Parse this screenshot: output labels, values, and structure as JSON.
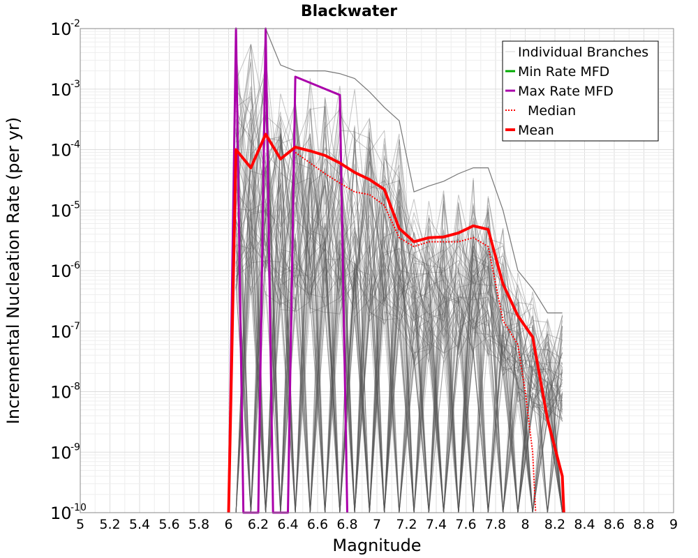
{
  "chart_data": {
    "type": "line",
    "title": "Blackwater",
    "xlabel": "Magnitude",
    "ylabel": "Incremental Nucleation Rate (per yr)",
    "xlim": [
      5,
      9
    ],
    "ylim": [
      1e-10,
      0.01
    ],
    "yscale": "log",
    "grid": true,
    "legend_position": "top-right",
    "x_ticks": [
      "5",
      "5.2",
      "5.4",
      "5.6",
      "5.8",
      "6",
      "6.2",
      "6.4",
      "6.6",
      "6.8",
      "7",
      "7.2",
      "7.4",
      "7.6",
      "7.8",
      "8",
      "8.2",
      "8.4",
      "8.6",
      "8.8",
      "9"
    ],
    "y_ticks": [
      {
        "base": "10",
        "exp": "-10"
      },
      {
        "base": "10",
        "exp": "-9"
      },
      {
        "base": "10",
        "exp": "-8"
      },
      {
        "base": "10",
        "exp": "-7"
      },
      {
        "base": "10",
        "exp": "-6"
      },
      {
        "base": "10",
        "exp": "-5"
      },
      {
        "base": "10",
        "exp": "-4"
      },
      {
        "base": "10",
        "exp": "-3"
      },
      {
        "base": "10",
        "exp": "-2"
      }
    ],
    "series": [
      {
        "name": "Individual Branches",
        "color": "#555555",
        "style": "thin-band",
        "x": [
          6.05,
          6.15,
          6.25,
          6.35,
          6.45,
          6.55,
          6.65,
          6.75,
          6.85,
          6.95,
          7.05,
          7.15,
          7.25,
          7.35,
          7.45,
          7.55,
          7.65,
          7.75,
          7.85,
          7.95,
          8.05,
          8.15,
          8.25
        ],
        "upper": [
          0.05,
          0.05,
          0.05,
          0.0025,
          0.002,
          0.002,
          0.002,
          0.0018,
          0.0015,
          0.0009,
          0.0005,
          0.0003,
          2e-05,
          2.5e-05,
          3e-05,
          4e-05,
          5e-05,
          5e-05,
          1e-05,
          1e-06,
          5e-07,
          2e-07,
          2e-07
        ],
        "lower": [
          1e-10,
          1e-10,
          1e-10,
          1e-10,
          1e-10,
          1e-10,
          1e-10,
          1e-10,
          1e-10,
          1e-10,
          1e-10,
          1e-10,
          1e-10,
          1e-10,
          1e-10,
          1e-10,
          1e-10,
          1e-10,
          1e-10,
          1e-10,
          1e-10,
          1e-10,
          1e-10
        ]
      },
      {
        "name": "Min Rate MFD",
        "color": "#00aa00",
        "x": [],
        "y": []
      },
      {
        "name": "Max Rate MFD",
        "color": "#aa00aa",
        "x": [
          6.0,
          6.05,
          6.1,
          6.2,
          6.25,
          6.3,
          6.4,
          6.45,
          6.75,
          6.8
        ],
        "y": [
          1e-10,
          0.05,
          1e-10,
          1e-10,
          0.045,
          1e-10,
          1e-10,
          0.0016,
          0.0008,
          1e-10
        ]
      },
      {
        "name": "Median",
        "color": "#ff0000",
        "x": [
          6.45,
          6.55,
          6.65,
          6.75,
          6.85,
          6.95,
          7.05,
          7.15,
          7.25,
          7.35,
          7.45,
          7.55,
          7.65,
          7.75,
          7.85,
          7.95,
          8.0,
          8.05,
          8.07
        ],
        "y": [
          9e-05,
          6e-05,
          4e-05,
          2.8e-05,
          2e-05,
          1.8e-05,
          1.2e-05,
          3.5e-06,
          2.5e-06,
          3e-06,
          3e-06,
          3e-06,
          3.5e-06,
          2.5e-06,
          1.5e-07,
          6e-08,
          1e-08,
          1e-09,
          1e-10
        ]
      },
      {
        "name": "Mean",
        "color": "#ff0000",
        "x": [
          6.0,
          6.05,
          6.15,
          6.25,
          6.35,
          6.45,
          6.55,
          6.65,
          6.75,
          6.85,
          6.95,
          7.05,
          7.15,
          7.25,
          7.35,
          7.45,
          7.55,
          7.65,
          7.75,
          7.85,
          7.95,
          8.05,
          8.15,
          8.25,
          8.26
        ],
        "y": [
          1e-10,
          0.0001,
          5e-05,
          0.00018,
          7e-05,
          0.00011,
          9.5e-05,
          8e-05,
          6e-05,
          4.2e-05,
          3.2e-05,
          2.2e-05,
          5e-06,
          3e-06,
          3.5e-06,
          3.6e-06,
          4.2e-06,
          5.5e-06,
          4.8e-06,
          6e-07,
          1.8e-07,
          8e-08,
          3.5e-09,
          4e-10,
          1e-10
        ]
      }
    ]
  }
}
